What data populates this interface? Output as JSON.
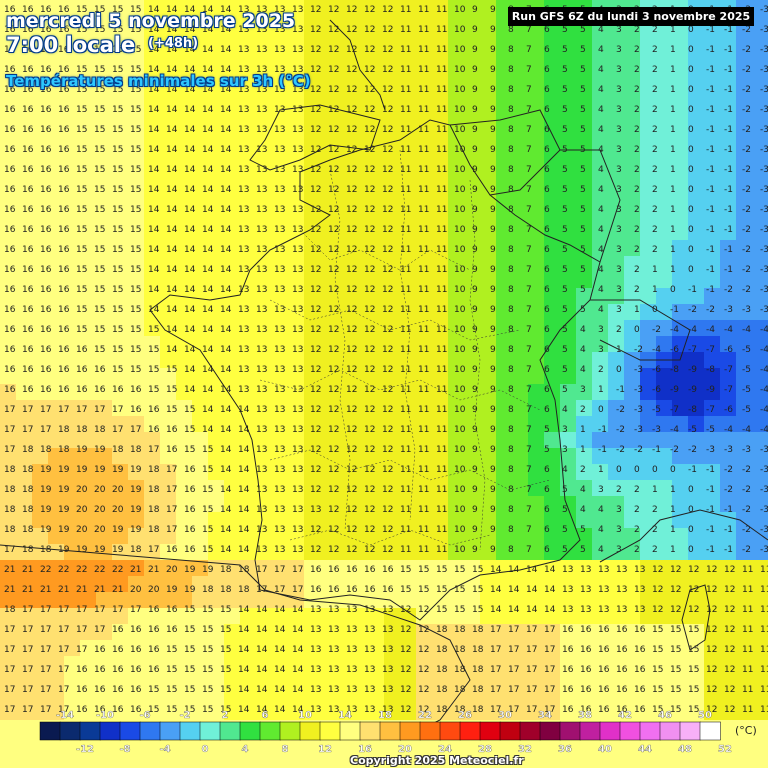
{
  "header": {
    "date": "mercredi 5 novembre 2025",
    "time": "7:00 locale",
    "lead": "(+48h)",
    "parameter": "Températures minimales sur 3h (°C)",
    "run": "Run GFS 6Z du lundi 3 novembre 2025"
  },
  "legend": {
    "unit": "(°C)",
    "labels_top": [
      "-14",
      "-10",
      "-6",
      "-2",
      "2",
      "6",
      "10",
      "14",
      "18",
      "22",
      "26",
      "30",
      "34",
      "38",
      "42",
      "46",
      "50"
    ],
    "labels_bottom": [
      "-12",
      "-8",
      "-4",
      "0",
      "4",
      "8",
      "12",
      "16",
      "20",
      "24",
      "28",
      "32",
      "36",
      "40",
      "44",
      "48",
      "52"
    ],
    "colors": [
      "#0a1a50",
      "#0b2a6e",
      "#0a3a96",
      "#1030c8",
      "#1a4ae6",
      "#2f78f0",
      "#4aa0f5",
      "#55d0f0",
      "#70f0d8",
      "#50e890",
      "#30e040",
      "#60ea30",
      "#b0f020",
      "#f0f020",
      "#ffff40",
      "#ffff80",
      "#ffe070",
      "#ffc040",
      "#ff9a20",
      "#ff7010",
      "#ff4a10",
      "#ff2010",
      "#e00010",
      "#c00010",
      "#a0002a",
      "#800040",
      "#a01070",
      "#c020a0",
      "#e030c8",
      "#f050e0",
      "#f070f0",
      "#f090f0",
      "#f8b0f8",
      "#ffffff"
    ]
  },
  "copyright": "Copyright 2025 Meteociel.fr"
}
